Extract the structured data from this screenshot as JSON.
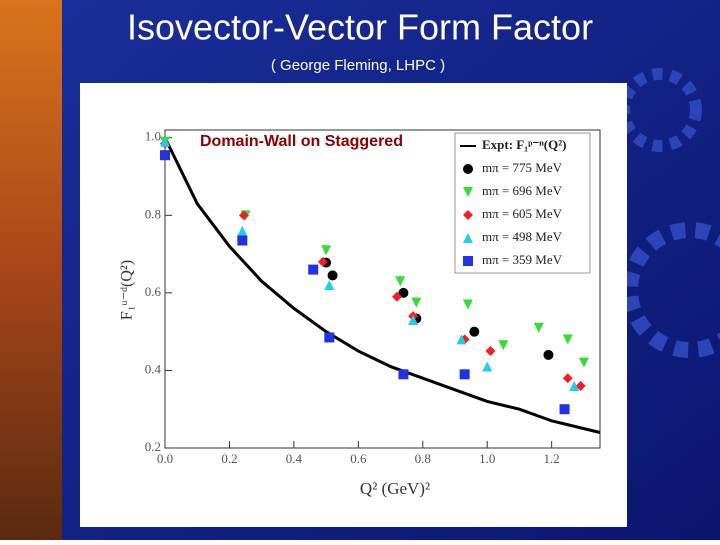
{
  "chart_data": {
    "type": "scatter",
    "title": "Isovector-Vector Form Factor",
    "subtitle": "( George Fleming, LHPC )",
    "annotations": [
      "Domain-Wall on Staggered"
    ],
    "x_label": "Q² (GeV)²",
    "y_label": "F₁ᵘ⁻ᵈ(Q²)",
    "xlim": [
      0,
      1.35
    ],
    "ylim": [
      0.2,
      1.02
    ],
    "xticks": [
      {
        "value": 0,
        "label": "0.0"
      },
      0.2,
      0.4,
      0.6,
      0.8,
      {
        "value": 1,
        "label": "1.0"
      },
      1.2
    ],
    "yticks": [
      0.2,
      0.4,
      0.6,
      0.8,
      {
        "value": 1,
        "label": "1.0"
      }
    ],
    "legend": "upper right",
    "series": [
      {
        "name": "Expt:  F₁ᵖ⁻ⁿ(Q²)",
        "color": "#000000",
        "style": "line",
        "x": [
          0,
          0.1,
          0.2,
          0.3,
          0.4,
          0.5,
          0.6,
          0.7,
          0.8,
          0.9,
          1.0,
          1.1,
          1.2,
          1.3,
          1.35
        ],
        "values": [
          1.0,
          0.83,
          0.72,
          0.63,
          0.56,
          0.5,
          0.45,
          0.41,
          0.38,
          0.35,
          0.32,
          0.3,
          0.27,
          0.25,
          0.24
        ]
      },
      {
        "name": "mπ = 775 MeV",
        "color": "#000000",
        "style": "circle",
        "x": [
          0.5,
          0.52,
          0.74,
          0.78,
          0.96,
          1.19
        ],
        "values": [
          0.678,
          0.645,
          0.6,
          0.534,
          0.5,
          0.44
        ]
      },
      {
        "name": "mπ = 696 MeV",
        "color": "#33dd33",
        "style": "triangle-down",
        "x": [
          0,
          0.25,
          0.5,
          0.73,
          0.78,
          0.94,
          1.05,
          1.16,
          1.25,
          1.3
        ],
        "values": [
          0.99,
          0.8,
          0.71,
          0.63,
          0.575,
          0.57,
          0.465,
          0.51,
          0.48,
          0.42
        ]
      },
      {
        "name": "mπ = 605 MeV",
        "color": "#ee2222",
        "style": "diamond",
        "x": [
          0,
          0.245,
          0.49,
          0.72,
          0.77,
          0.93,
          1.01,
          1.25,
          1.29
        ],
        "values": [
          0.985,
          0.8,
          0.68,
          0.59,
          0.54,
          0.48,
          0.45,
          0.38,
          0.36
        ]
      },
      {
        "name": "mπ = 498 MeV",
        "color": "#22ccee",
        "style": "triangle-up",
        "x": [
          0,
          0.24,
          0.51,
          0.77,
          0.92,
          1.0,
          1.27
        ],
        "values": [
          0.99,
          0.76,
          0.62,
          0.53,
          0.48,
          0.41,
          0.36
        ]
      },
      {
        "name": "mπ = 359 MeV",
        "color": "#2233dd",
        "style": "square",
        "x": [
          0,
          0.24,
          0.46,
          0.51,
          0.74,
          0.93,
          1.24
        ],
        "values": [
          0.955,
          0.735,
          0.66,
          0.485,
          0.39,
          0.39,
          0.3
        ]
      }
    ]
  }
}
